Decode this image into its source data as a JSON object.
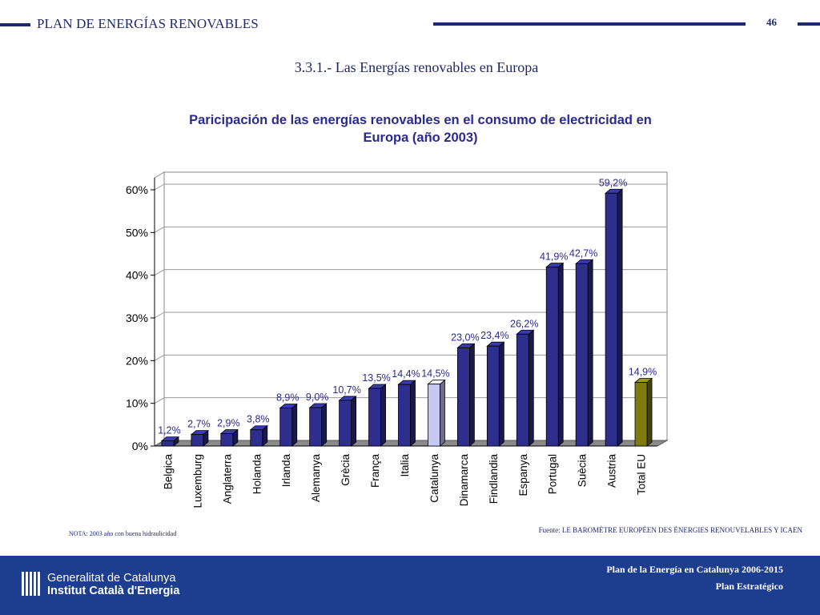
{
  "header": {
    "title": "PLAN DE ENERGÍAS RENOVABLES",
    "page_number": "46",
    "section_title": "3.3.1.- Las Energías renovables en Europa"
  },
  "chart_data": {
    "type": "bar",
    "title_line1": "Paricipación de las energías renovables en el consumo de electricidad en",
    "title_line2": "Europa (año 2003)",
    "categories": [
      "Belgica",
      "Luxemburg",
      "Anglaterra",
      "Holanda",
      "Irlanda",
      "Alemanya",
      "Grècia",
      "França",
      "Italia",
      "Catalunya",
      "Dinamarca",
      "Findlandia",
      "Espanya",
      "Portugal",
      "Suècia",
      "Austria",
      "Total EU"
    ],
    "values": [
      1.2,
      2.7,
      2.9,
      3.8,
      8.9,
      9.0,
      10.7,
      13.5,
      14.4,
      14.5,
      23.0,
      23.4,
      26.2,
      41.9,
      42.7,
      59.2,
      14.9
    ],
    "value_labels": [
      "1,2%",
      "2,7%",
      "2,9%",
      "3,8%",
      "8,9%",
      "9,0%",
      "10,7%",
      "13,5%",
      "14,4%",
      "14,5%",
      "23,0%",
      "23,4%",
      "26,2%",
      "41,9%",
      "42,7%",
      "59,2%",
      "14,9%"
    ],
    "y_ticks": [
      0,
      10,
      20,
      30,
      40,
      50,
      60
    ],
    "y_tick_labels": [
      "0%",
      "10%",
      "20%",
      "30%",
      "40%",
      "50%",
      "60%"
    ],
    "ylim": [
      0,
      60
    ],
    "grid": true,
    "colors": {
      "default": "#2e2e8e",
      "highlight": "#c8c8f4",
      "total": "#7d7a0e",
      "label": "#2a2a90"
    },
    "highlight_categories": [
      "Catalunya"
    ],
    "total_categories": [
      "Total EU"
    ]
  },
  "notes": {
    "note": "NOTA: 2003 año con buena hidraulicidad",
    "source": "Fuente: LE BAROMÈTRE EUROPÉEN DES ÉNERGIES RENOUVELABLES Y ICAEN"
  },
  "footer": {
    "org_name": "Generalitat de Catalunya",
    "org_sub": "Institut Català d'Energia",
    "plan_title": "Plan de la Energía en Catalunya 2006-2015",
    "plan_sub": "Plan Estratégico"
  }
}
